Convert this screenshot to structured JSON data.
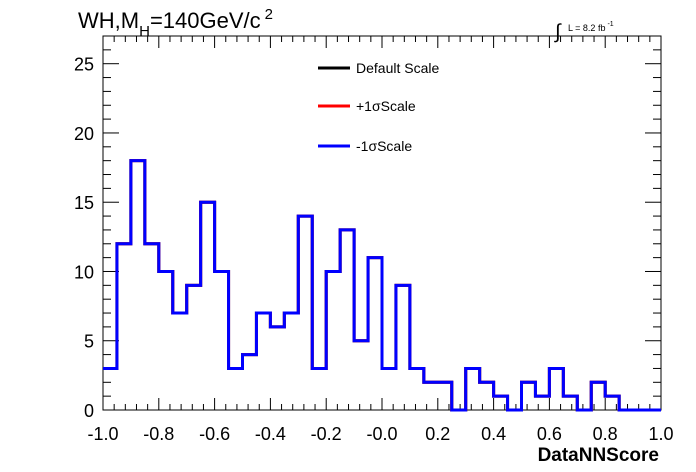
{
  "title": {
    "prefix": "WH,M",
    "subscript": "H",
    "mid": "=140GeV/c",
    "superscript": "2"
  },
  "lumi": {
    "integral_symbol": "∫",
    "text": "L = 8.2 fb",
    "superscript": "-1"
  },
  "chart_data": {
    "type": "histogram",
    "xlabel": "DataNNScore",
    "ylabel": "",
    "xlim": [
      -1.0,
      1.0
    ],
    "ylim": [
      0,
      27
    ],
    "bins": 40,
    "x_ticks": [
      "-1.0",
      "-0.8",
      "-0.6",
      "-0.4",
      "-0.2",
      "-0.0",
      "0.2",
      "0.4",
      "0.6",
      "0.8",
      "1.0"
    ],
    "x_tick_values": [
      -1.0,
      -0.8,
      -0.6,
      -0.4,
      -0.2,
      0.0,
      0.2,
      0.4,
      0.6,
      0.8,
      1.0
    ],
    "y_ticks": [
      "0",
      "5",
      "10",
      "15",
      "20",
      "25"
    ],
    "y_tick_values": [
      0,
      5,
      10,
      15,
      20,
      25
    ],
    "grid": false,
    "legend_position": "top-center",
    "series": [
      {
        "name": "Default Scale",
        "color": "#000000",
        "values": [
          3,
          12,
          18,
          12,
          10,
          7,
          9,
          15,
          10,
          3,
          4,
          7,
          6,
          7,
          14,
          3,
          10,
          13,
          5,
          11,
          3,
          9,
          3,
          2,
          2,
          0,
          3,
          2,
          1,
          0,
          2,
          1,
          3,
          1,
          0,
          2,
          1,
          0,
          0,
          0
        ]
      },
      {
        "name": "+1σScale",
        "color": "#ff0000",
        "values": [
          3,
          12,
          18,
          12,
          10,
          7,
          9,
          15,
          10,
          3,
          4,
          7,
          6,
          7,
          14,
          3,
          10,
          13,
          5,
          11,
          3,
          9,
          3,
          2,
          2,
          0,
          3,
          2,
          1,
          0,
          2,
          1,
          3,
          1,
          0,
          2,
          1,
          0,
          0,
          0
        ]
      },
      {
        "name": "-1σScale",
        "color": "#0000ff",
        "values": [
          3,
          12,
          18,
          12,
          10,
          7,
          9,
          15,
          10,
          3,
          4,
          7,
          6,
          7,
          14,
          3,
          10,
          13,
          5,
          11,
          3,
          9,
          3,
          2,
          2,
          0,
          3,
          2,
          1,
          0,
          2,
          1,
          3,
          1,
          0,
          2,
          1,
          0,
          0,
          0
        ]
      }
    ]
  }
}
